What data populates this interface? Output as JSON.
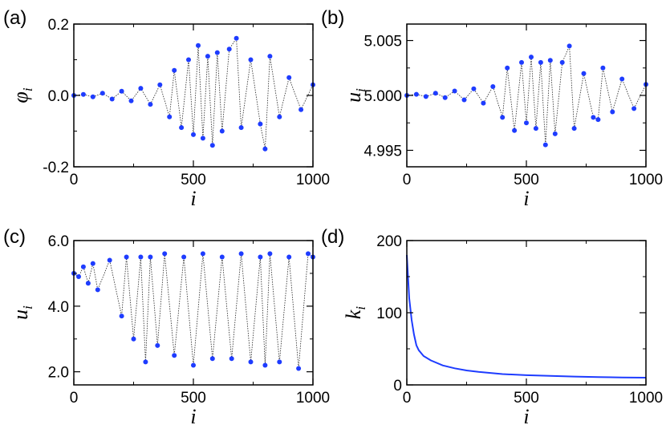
{
  "chart_data": [
    {
      "id": "a",
      "panel_label": "(a)",
      "type": "scatter",
      "connected": true,
      "title": "",
      "xlabel": "i",
      "ylabel": "φ",
      "ylabel_sub": "i",
      "xlim": [
        0,
        1000
      ],
      "ylim": [
        -0.2,
        0.2
      ],
      "xticks": [
        0,
        500,
        1000
      ],
      "xtick_labels": [
        "0",
        "500",
        "1000"
      ],
      "yticks": [
        -0.2,
        0.0,
        0.2
      ],
      "ytick_labels": [
        "-0.2",
        "0.0",
        "0.2"
      ],
      "marker_color": "#1e3cff",
      "line_color": "#222222",
      "series": [
        {
          "name": "φ_i",
          "x": [
            0,
            40,
            80,
            120,
            160,
            200,
            240,
            280,
            320,
            360,
            400,
            420,
            450,
            480,
            500,
            520,
            540,
            560,
            580,
            600,
            620,
            650,
            680,
            700,
            740,
            780,
            800,
            820,
            860,
            900,
            950,
            1000
          ],
          "y": [
            0.0,
            0.003,
            -0.004,
            0.006,
            -0.01,
            0.012,
            -0.015,
            0.02,
            -0.025,
            0.03,
            -0.06,
            0.07,
            -0.09,
            0.1,
            -0.11,
            0.14,
            -0.12,
            0.11,
            -0.14,
            0.12,
            -0.1,
            0.13,
            0.16,
            -0.09,
            0.1,
            -0.08,
            -0.15,
            0.11,
            -0.06,
            0.05,
            -0.04,
            0.03
          ]
        }
      ]
    },
    {
      "id": "b",
      "panel_label": "(b)",
      "type": "scatter",
      "connected": true,
      "title": "",
      "xlabel": "i",
      "ylabel": "u",
      "ylabel_sub": "i",
      "xlim": [
        0,
        1000
      ],
      "ylim": [
        4.9935,
        5.0065
      ],
      "xticks": [
        0,
        500,
        1000
      ],
      "xtick_labels": [
        "0",
        "500",
        "1000"
      ],
      "yticks": [
        4.995,
        5.0,
        5.005
      ],
      "ytick_labels": [
        "4.995",
        "5.000",
        "5.005"
      ],
      "marker_color": "#1e3cff",
      "line_color": "#222222",
      "series": [
        {
          "name": "u_i",
          "x": [
            0,
            40,
            80,
            120,
            160,
            200,
            240,
            280,
            320,
            360,
            400,
            420,
            450,
            480,
            500,
            520,
            540,
            560,
            580,
            600,
            620,
            650,
            680,
            700,
            740,
            780,
            800,
            820,
            860,
            900,
            950,
            1000
          ],
          "y": [
            5.0,
            5.0001,
            4.9999,
            5.0002,
            4.9998,
            5.0004,
            4.9996,
            5.0006,
            4.9993,
            5.0008,
            4.998,
            5.0025,
            4.9968,
            5.003,
            4.9975,
            5.0035,
            4.997,
            5.003,
            4.9955,
            5.0032,
            4.9965,
            5.003,
            5.0045,
            4.997,
            5.002,
            4.998,
            4.9978,
            5.0025,
            4.9985,
            5.0015,
            4.9988,
            5.001
          ]
        }
      ]
    },
    {
      "id": "c",
      "panel_label": "(c)",
      "type": "scatter",
      "connected": true,
      "title": "",
      "xlabel": "i",
      "ylabel": "u",
      "ylabel_sub": "i",
      "xlim": [
        0,
        1000
      ],
      "ylim": [
        1.6,
        6.0
      ],
      "xticks": [
        0,
        500,
        1000
      ],
      "xtick_labels": [
        "0",
        "500",
        "1000"
      ],
      "yticks": [
        2.0,
        4.0,
        6.0
      ],
      "ytick_labels": [
        "2.0",
        "4.0",
        "6.0"
      ],
      "marker_color": "#1e3cff",
      "line_color": "#222222",
      "series": [
        {
          "name": "u_i",
          "x": [
            0,
            20,
            40,
            60,
            80,
            100,
            150,
            200,
            220,
            250,
            280,
            300,
            320,
            350,
            380,
            420,
            460,
            500,
            540,
            580,
            620,
            660,
            700,
            740,
            780,
            800,
            820,
            860,
            900,
            940,
            980,
            1000
          ],
          "y": [
            5.0,
            4.9,
            5.2,
            4.7,
            5.3,
            4.5,
            5.4,
            3.7,
            5.5,
            3.0,
            5.5,
            2.3,
            5.5,
            2.8,
            5.6,
            2.5,
            5.5,
            2.2,
            5.6,
            2.4,
            5.5,
            2.4,
            5.6,
            2.3,
            5.5,
            2.2,
            5.6,
            2.3,
            5.5,
            2.1,
            5.6,
            5.5
          ]
        }
      ]
    },
    {
      "id": "d",
      "panel_label": "(d)",
      "type": "line",
      "title": "",
      "xlabel": "i",
      "ylabel": "k",
      "ylabel_sub": "i",
      "xlim": [
        0,
        1000
      ],
      "ylim": [
        0,
        200
      ],
      "xticks": [
        0,
        500,
        1000
      ],
      "xtick_labels": [
        "0",
        "500",
        "1000"
      ],
      "yticks": [
        0,
        100,
        200
      ],
      "ytick_labels": [
        "0",
        "100",
        "200"
      ],
      "line_color": "#1e3cff",
      "series": [
        {
          "name": "k_i",
          "x": [
            0,
            5,
            10,
            20,
            30,
            40,
            50,
            70,
            100,
            150,
            200,
            250,
            300,
            400,
            500,
            600,
            700,
            800,
            900,
            1000
          ],
          "y": [
            180,
            150,
            120,
            90,
            70,
            55,
            48,
            40,
            34,
            27,
            23,
            20,
            18,
            15,
            13.5,
            12.5,
            11.5,
            10.8,
            10.3,
            10
          ]
        }
      ]
    }
  ]
}
